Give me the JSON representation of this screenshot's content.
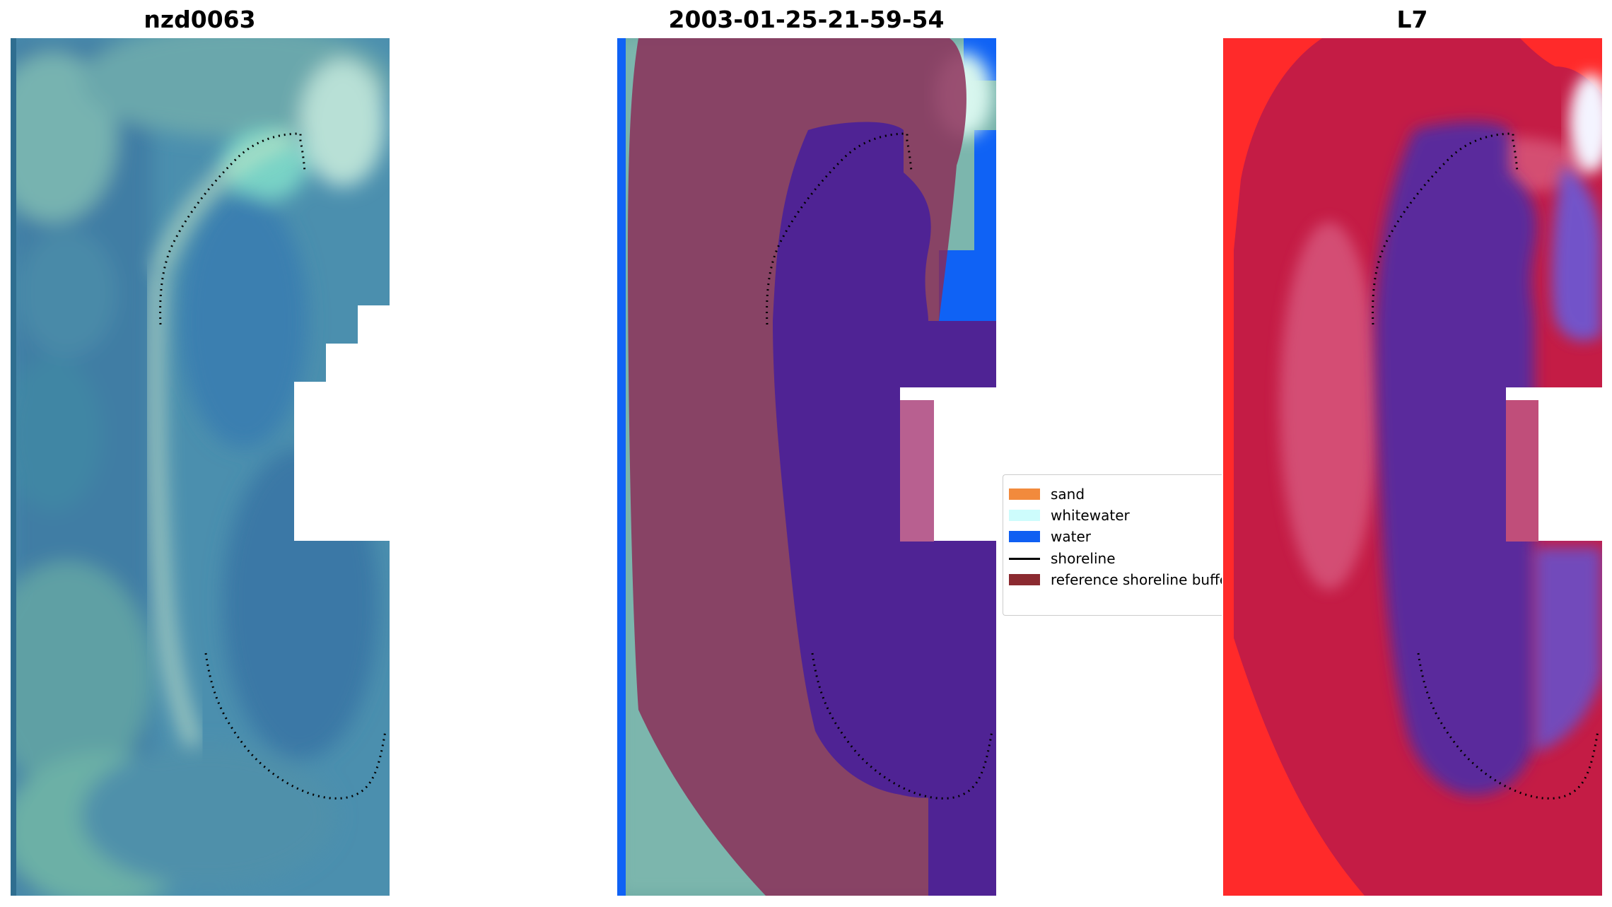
{
  "panels": [
    {
      "title": "nzd0063"
    },
    {
      "title": "2003-01-25-21-59-54"
    },
    {
      "title": "L7"
    }
  ],
  "legend": {
    "items": [
      {
        "label": "sand",
        "kind": "patch",
        "color": "#f28a3c"
      },
      {
        "label": "whitewater",
        "kind": "patch",
        "color": "#cdfcfc"
      },
      {
        "label": "water",
        "kind": "patch",
        "color": "#0f5ff2"
      },
      {
        "label": "shoreline",
        "kind": "line",
        "color": "#000000"
      },
      {
        "label": "reference shoreline buffer",
        "kind": "patch",
        "color": "#8b2a30"
      }
    ]
  },
  "colors": {
    "water_mask": "#0f62f5",
    "buffer_overlay": "#8b2a55",
    "sea_classified": "#4f2394",
    "sea_index": "#5a2a9c",
    "land_index": "#c41c45",
    "land_high": "#ff2a2a",
    "imagery_water": "#3d7ea2",
    "imagery_land": "#6aa8a2"
  }
}
